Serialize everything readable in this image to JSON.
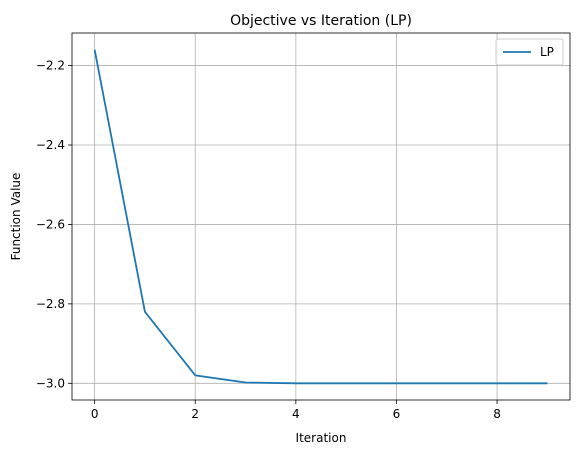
{
  "chart_data": {
    "type": "line",
    "title": "Objective vs Iteration (LP)",
    "xlabel": "Iteration",
    "ylabel": "Function Value",
    "xlim": [
      -0.45,
      9.45
    ],
    "ylim": [
      -3.042,
      -2.118
    ],
    "xticks": [
      0,
      2,
      4,
      6,
      8
    ],
    "yticks": [
      -3.0,
      -2.8,
      -2.6,
      -2.4,
      -2.2
    ],
    "xtick_labels": [
      "0",
      "2",
      "4",
      "6",
      "8"
    ],
    "ytick_labels": [
      "−3.0",
      "−2.8",
      "−2.6",
      "−2.4",
      "−2.2"
    ],
    "grid": true,
    "legend": {
      "placement": "top-right"
    },
    "series": [
      {
        "name": "LP",
        "color": "#1f77b4",
        "x": [
          0,
          1,
          2,
          3,
          4,
          5,
          6,
          7,
          8,
          9
        ],
        "y": [
          -2.16,
          -2.82,
          -2.98,
          -2.998,
          -3.0,
          -3.0,
          -3.0,
          -3.0,
          -3.0,
          -3.0
        ]
      }
    ]
  }
}
